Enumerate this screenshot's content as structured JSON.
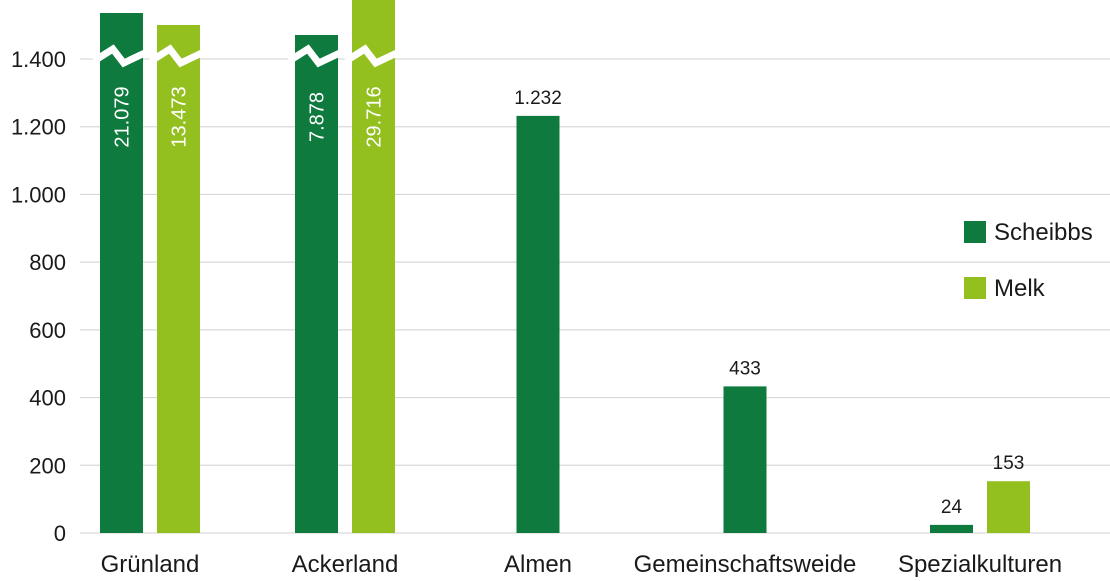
{
  "chart_data": {
    "type": "bar",
    "categories": [
      "Grünland",
      "Ackerland",
      "Almen",
      "Gemeinschaftsweide",
      "Spezialkulturen"
    ],
    "series": [
      {
        "name": "Scheibbs",
        "color": "#0e7a3d",
        "values": [
          21079,
          7878,
          1232,
          433,
          24
        ],
        "value_labels": [
          "21.079",
          "7.878",
          "1.232",
          "433",
          "24"
        ]
      },
      {
        "name": "Melk",
        "color": "#93c01f",
        "values": [
          13473,
          29716,
          null,
          null,
          153
        ],
        "value_labels": [
          "13.473",
          "29.716",
          "",
          "",
          "153"
        ]
      }
    ],
    "ylim": [
      0,
      1400
    ],
    "yticks": [
      0,
      200,
      400,
      600,
      800,
      1000,
      1200,
      1400
    ],
    "ytick_labels": [
      "0",
      "200",
      "400",
      "600",
      "800",
      "1.000",
      "1.200",
      "1.400"
    ],
    "axis_break": true,
    "grid": true,
    "legend_position": "right",
    "title": "",
    "xlabel": "",
    "ylabel": ""
  }
}
